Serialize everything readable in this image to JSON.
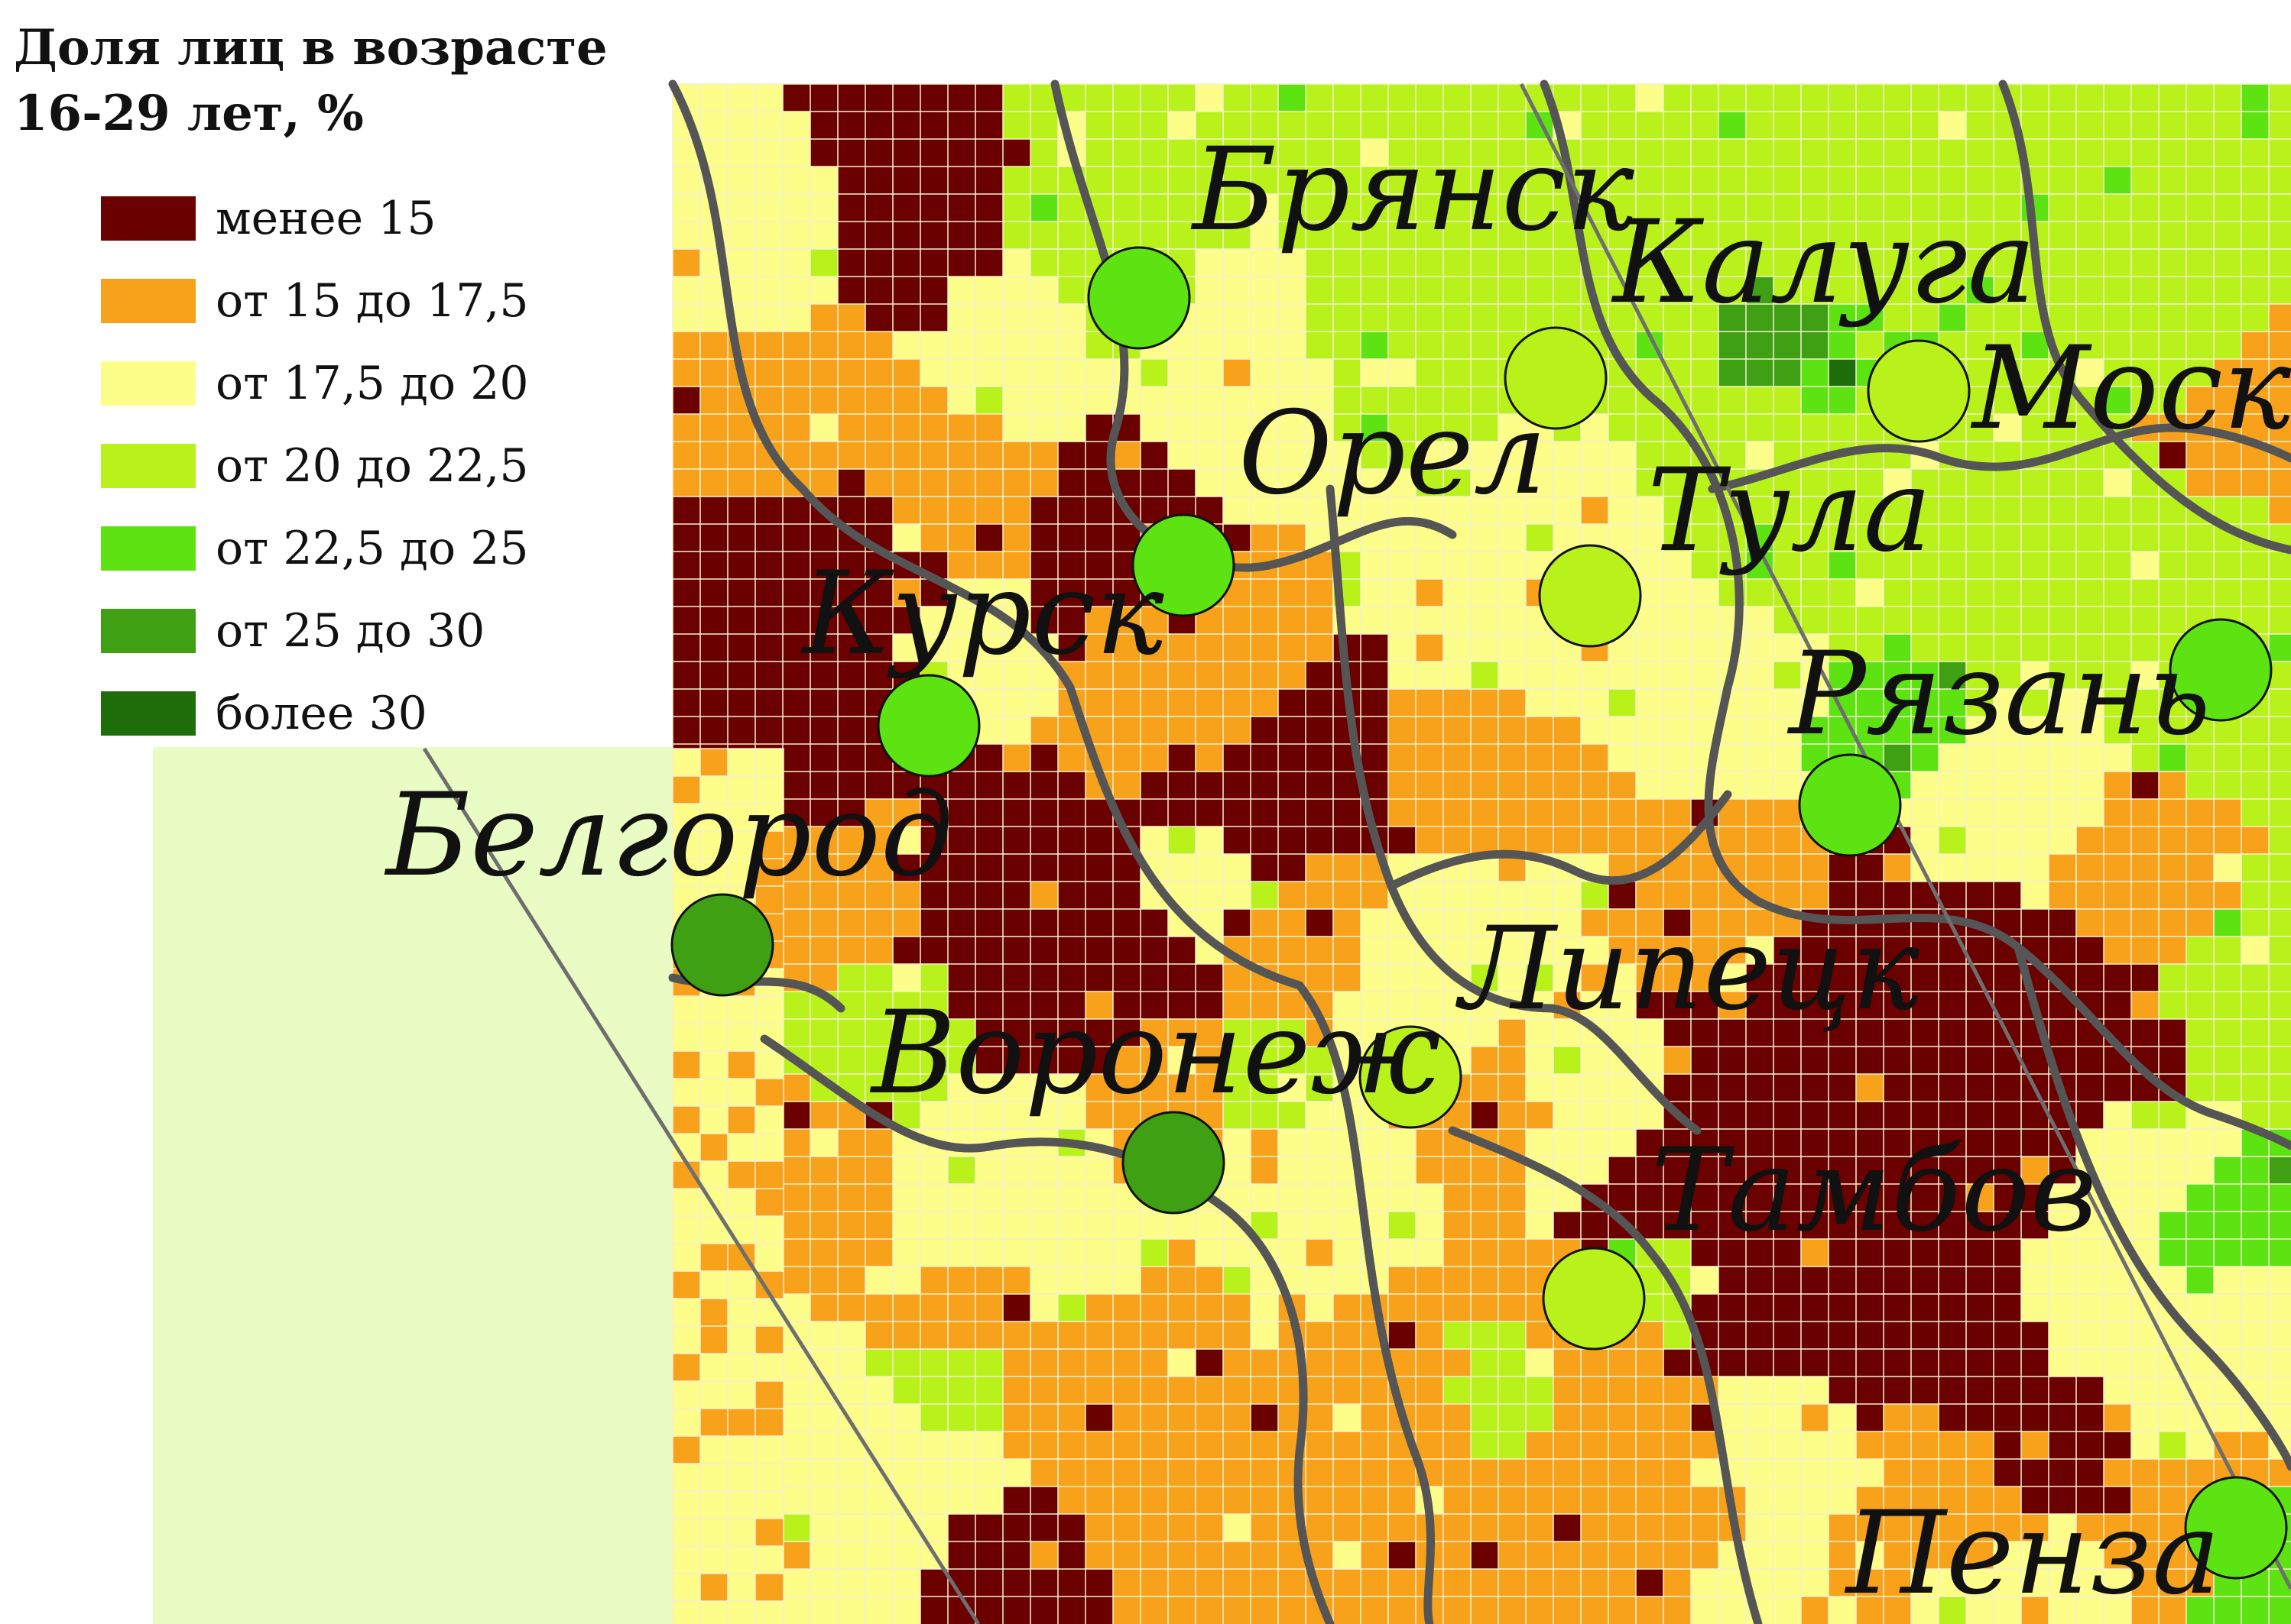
{
  "legend": {
    "title": "Доля лиц в возрасте\n16-29 лет, %",
    "items": [
      {
        "label": "менее 15",
        "color": "#6b0000"
      },
      {
        "label": "от 15 до 17,5",
        "color": "#f7a21a"
      },
      {
        "label": "от 17,5 до 20",
        "color": "#fdfd8a"
      },
      {
        "label": "от 20 до 22,5",
        "color": "#b8f21a"
      },
      {
        "label": "от 22,5 до 25",
        "color": "#5ee312"
      },
      {
        "label": "от 25 до 30",
        "color": "#3fa014"
      },
      {
        "label": "более 30",
        "color": "#1f6e0c"
      }
    ]
  },
  "cities": [
    {
      "name": "Брянск",
      "class": "от 22,5 до 25"
    },
    {
      "name": "Калуга",
      "class": "от 20 до 22,5"
    },
    {
      "name": "Москва",
      "label": "Моске",
      "class": "от 20 до 22,5"
    },
    {
      "name": "Орел",
      "class": "от 22,5 до 25"
    },
    {
      "name": "Тула",
      "class": "от 20 до 22,5"
    },
    {
      "name": "Курск",
      "class": "от 22,5 до 25"
    },
    {
      "name": "Рязань",
      "class": "от 22,5 до 25"
    },
    {
      "name": "Белгород",
      "class": "от 25 до 30"
    },
    {
      "name": "Липецк",
      "class": "от 20 до 22,5"
    },
    {
      "name": "Воронеж",
      "class": "от 25 до 30"
    },
    {
      "name": "Тамбов",
      "class": "от 20 до 22,5"
    },
    {
      "name": "Пенза",
      "class": "от 22,5 до 25"
    },
    {
      "name": "",
      "class": "от 22,5 до 25"
    }
  ],
  "colors": {
    "background": "#e8fcc4",
    "border": "#555555",
    "district_border": "#f4f1cf",
    "marker_outline": "#111111",
    "label": "#111111"
  }
}
